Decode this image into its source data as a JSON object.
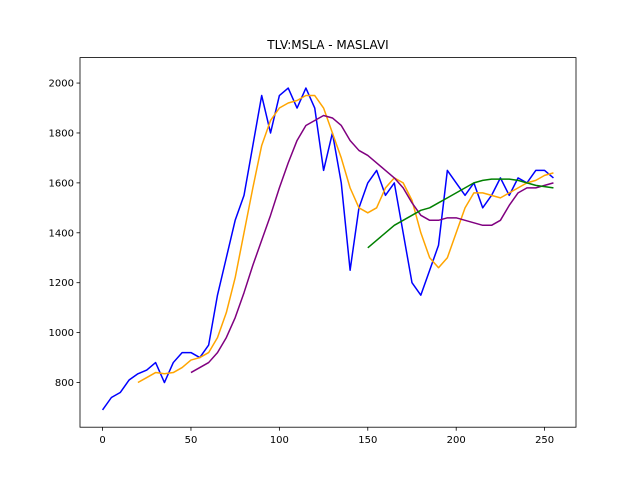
{
  "chart_data": {
    "type": "line",
    "title": "TLV:MSLA - MASLAVI",
    "x": [
      0,
      5,
      10,
      15,
      20,
      25,
      30,
      35,
      40,
      45,
      50,
      55,
      60,
      65,
      70,
      75,
      80,
      85,
      90,
      95,
      100,
      105,
      110,
      115,
      120,
      125,
      130,
      135,
      140,
      145,
      150,
      155,
      160,
      165,
      170,
      175,
      180,
      185,
      190,
      195,
      200,
      205,
      210,
      215,
      220,
      225,
      230,
      235,
      240,
      245,
      250,
      255
    ],
    "series": [
      {
        "color": "#0000ff",
        "values": [
          690,
          740,
          760,
          810,
          835,
          850,
          880,
          800,
          880,
          920,
          920,
          900,
          950,
          1150,
          1300,
          1450,
          1550,
          1750,
          1950,
          1800,
          1950,
          1980,
          1900,
          1980,
          1900,
          1650,
          1800,
          1600,
          1250,
          1500,
          1600,
          1650,
          1550,
          1600,
          1400,
          1200,
          1150,
          1250,
          1350,
          1650,
          1600,
          1550,
          1600,
          1500,
          1550,
          1620,
          1550,
          1620,
          1600,
          1650,
          1650,
          1620
        ]
      },
      {
        "color": "#ffa500",
        "values": [
          null,
          null,
          null,
          null,
          800,
          820,
          840,
          835,
          840,
          860,
          890,
          900,
          920,
          980,
          1080,
          1220,
          1400,
          1580,
          1750,
          1850,
          1900,
          1920,
          1930,
          1950,
          1950,
          1900,
          1800,
          1700,
          1580,
          1500,
          1480,
          1500,
          1580,
          1620,
          1600,
          1530,
          1400,
          1300,
          1260,
          1300,
          1400,
          1500,
          1560,
          1560,
          1550,
          1540,
          1560,
          1580,
          1600,
          1610,
          1630,
          1640
        ]
      },
      {
        "color": "#800080",
        "values": [
          null,
          null,
          null,
          null,
          null,
          null,
          null,
          null,
          null,
          null,
          840,
          860,
          880,
          920,
          980,
          1060,
          1160,
          1270,
          1370,
          1470,
          1580,
          1680,
          1770,
          1830,
          1850,
          1870,
          1860,
          1830,
          1770,
          1730,
          1710,
          1680,
          1650,
          1620,
          1580,
          1520,
          1470,
          1450,
          1450,
          1460,
          1460,
          1450,
          1440,
          1430,
          1430,
          1450,
          1510,
          1560,
          1580,
          1580,
          1590,
          1600
        ]
      },
      {
        "color": "#008000",
        "values": [
          null,
          null,
          null,
          null,
          null,
          null,
          null,
          null,
          null,
          null,
          null,
          null,
          null,
          null,
          null,
          null,
          null,
          null,
          null,
          null,
          null,
          null,
          null,
          null,
          null,
          null,
          null,
          null,
          null,
          null,
          1340,
          1370,
          1400,
          1430,
          1450,
          1470,
          1490,
          1500,
          1520,
          1540,
          1560,
          1580,
          1600,
          1610,
          1615,
          1615,
          1615,
          1610,
          1600,
          1590,
          1585,
          1580
        ]
      }
    ],
    "xlim": [
      -12.75,
      267.75
    ],
    "ylim": [
      621,
      2102
    ],
    "xticks": [
      0,
      50,
      100,
      150,
      200,
      250
    ],
    "yticks": [
      800,
      1000,
      1200,
      1400,
      1600,
      1800,
      2000
    ]
  }
}
